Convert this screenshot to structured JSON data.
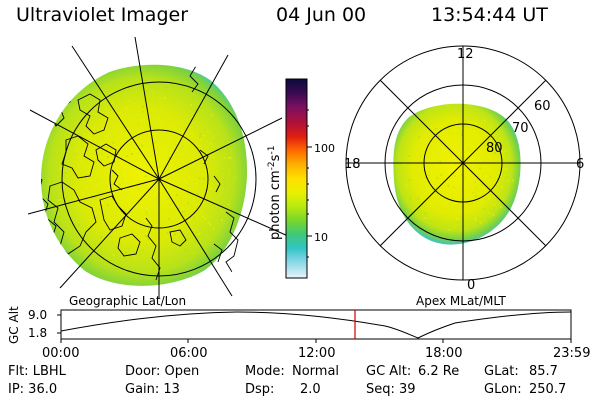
{
  "header": {
    "title": "Ultraviolet Imager",
    "date": "04 Jun 00",
    "time": "13:54:44 UT"
  },
  "left_panel": {
    "label": "Geographic Lat/Lon"
  },
  "right_panel": {
    "label": "Apex MLat/MLT",
    "mlt_labels": [
      "12",
      "18",
      "6",
      "0"
    ],
    "mlat_labels": [
      "60",
      "70",
      "80"
    ]
  },
  "colorbar": {
    "unit": "photon cm",
    "unit_exp1": "-2",
    "unit_mid": "s",
    "unit_exp2": "-1",
    "ticks": [
      "100",
      "10"
    ],
    "colors": [
      "#0b0b3a",
      "#3a0a52",
      "#7a1060",
      "#b0103a",
      "#e01e10",
      "#ff6a00",
      "#ffb000",
      "#ffe000",
      "#eaf000",
      "#b8ea10",
      "#7ad62a",
      "#3fc877",
      "#32c5c5",
      "#8ad8e8",
      "#e6f4f8"
    ]
  },
  "timeline": {
    "ylabel": "GC Alt",
    "y_ticks": [
      "9.0",
      "1.8"
    ],
    "x_ticks": [
      "00:00",
      "06:00",
      "12:00",
      "18:00",
      "23:59"
    ],
    "marker_time": "13:54"
  },
  "info": {
    "flt": "Flt: LBHL",
    "ip": "IP: 36.0",
    "door": "Door: Open",
    "gain": "Gain: 13",
    "mode_label": "Mode:",
    "mode_value": "Normal",
    "dsp_label": "Dsp:",
    "dsp_value": "2.0",
    "gcalt_label": "GC Alt:",
    "gcalt_value": "6.2 Re",
    "seq": "Seq: 39",
    "glat_label": "GLat:",
    "glat_value": "85.7",
    "glon_label": "GLon:",
    "glon_value": "250.7"
  },
  "colors": {
    "aurora_main": "#e2ee00",
    "aurora_edge": "#86d83a",
    "aurora_rim": "#3fc5b0",
    "marker": "#cc0000"
  }
}
